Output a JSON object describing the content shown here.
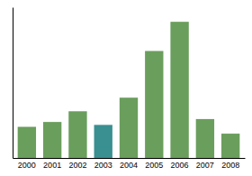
{
  "chart_data": {
    "type": "bar",
    "categories": [
      "2000",
      "2001",
      "2002",
      "2003",
      "2004",
      "2005",
      "2006",
      "2007",
      "2008"
    ],
    "values": [
      3.2,
      3.7,
      4.8,
      3.4,
      6.2,
      11.0,
      14.0,
      4.0,
      2.5
    ],
    "colors": [
      "#6a9e5c",
      "#6a9e5c",
      "#6a9e5c",
      "#3a8f91",
      "#6a9e5c",
      "#6a9e5c",
      "#6a9e5c",
      "#6a9e5c",
      "#6a9e5c"
    ],
    "ylim": [
      0,
      15.5
    ],
    "yticks": [],
    "grid": false,
    "tick_labels": "x"
  }
}
